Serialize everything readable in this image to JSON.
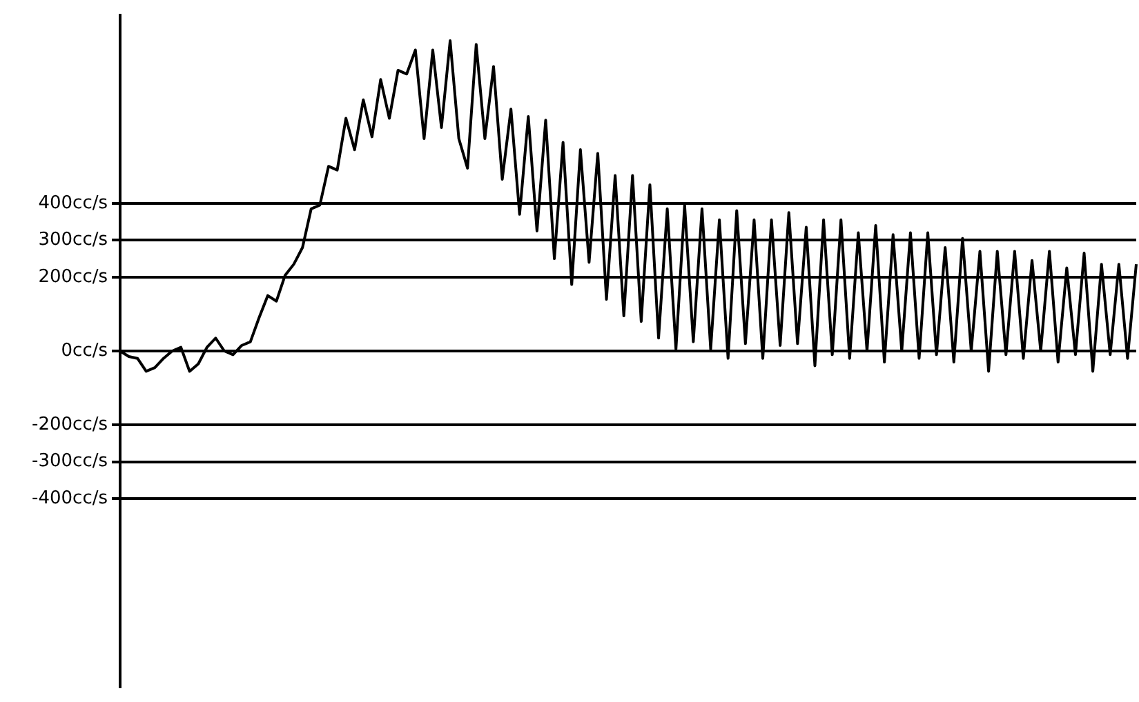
{
  "chart_data": {
    "type": "line",
    "categories": [
      null,
      null,
      null,
      null,
      null,
      null,
      null,
      null,
      null,
      null,
      null,
      null,
      null,
      null,
      null,
      null,
      null,
      null,
      null,
      null,
      null,
      null,
      null,
      null,
      null,
      null,
      null,
      null,
      null,
      null,
      null,
      null,
      null,
      null,
      null,
      null,
      null,
      null,
      null,
      null,
      null,
      null,
      null,
      null,
      null,
      null,
      null,
      null,
      null,
      null,
      null,
      null,
      null,
      null,
      null,
      null,
      null,
      null,
      null,
      null,
      null,
      null,
      null,
      null,
      null,
      null,
      null,
      null,
      null,
      null,
      null,
      null,
      null,
      null,
      null,
      null,
      null,
      null,
      null,
      null,
      null,
      null,
      null,
      null,
      null,
      null,
      null,
      null,
      null,
      null,
      null,
      null,
      null,
      null,
      null,
      null,
      null,
      null,
      null,
      null,
      null,
      null,
      null,
      null,
      null,
      null,
      null,
      null,
      null,
      null,
      null,
      null,
      null,
      null,
      null,
      null,
      null,
      null
    ],
    "series": [
      {
        "color": "#000000",
        "values": [
          0,
          -15,
          -20,
          -55,
          -45,
          -20,
          0,
          10,
          -55,
          -35,
          10,
          35,
          0,
          -10,
          15,
          25,
          90,
          150,
          135,
          205,
          235,
          280,
          385,
          395,
          500,
          490,
          630,
          545,
          680,
          580,
          735,
          630,
          760,
          750,
          815,
          575,
          815,
          605,
          840,
          575,
          495,
          830,
          575,
          770,
          465,
          655,
          370,
          635,
          325,
          625,
          250,
          565,
          180,
          545,
          240,
          535,
          140,
          475,
          95,
          475,
          80,
          450,
          35,
          385,
          5,
          395,
          25,
          385,
          5,
          355,
          -20,
          380,
          20,
          355,
          -20,
          355,
          15,
          375,
          20,
          335,
          -40,
          355,
          -10,
          355,
          -20,
          320,
          0,
          340,
          -30,
          315,
          0,
          320,
          -20,
          320,
          -10,
          280,
          -30,
          305,
          0,
          270,
          -55,
          270,
          -10,
          270,
          -20,
          245,
          0,
          270,
          -30,
          225,
          -10,
          265,
          -55,
          235,
          -10,
          235,
          -20,
          235
        ]
      }
    ],
    "ylim": [
      -910,
      910
    ],
    "yticks": [
      {
        "value": 400,
        "label": "400cc/s"
      },
      {
        "value": 300,
        "label": "300cc/s"
      },
      {
        "value": 200,
        "label": "200cc/s"
      },
      {
        "value": 0,
        "label": "0cc/s"
      },
      {
        "value": -200,
        "label": "-200cc/s"
      },
      {
        "value": -300,
        "label": "-300cc/s"
      },
      {
        "value": -400,
        "label": "-400cc/s"
      }
    ],
    "grid": "y",
    "tick_labels": "y",
    "marker": "none",
    "line_style": "solid"
  }
}
